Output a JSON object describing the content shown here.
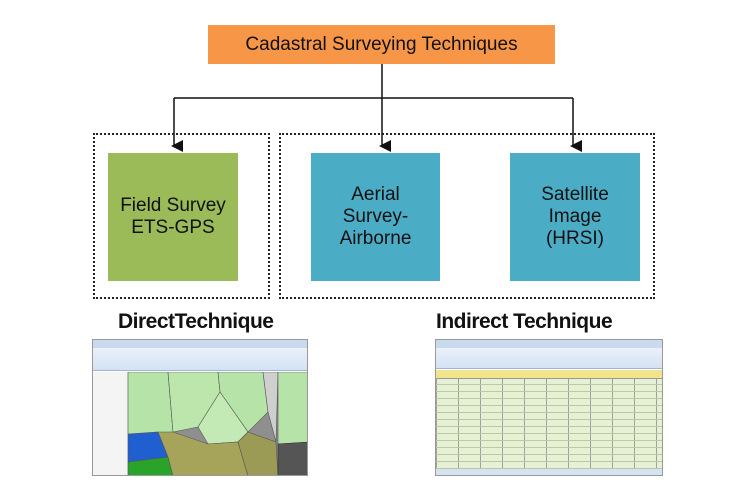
{
  "title": "Cadastral Surveying Techniques",
  "nodes": {
    "field_survey": "Field Survey\nETS-GPS",
    "aerial_survey": "Aerial\nSurvey-\nAirborne",
    "satellite_image": "Satellite\nImage\n(HRSI)"
  },
  "groups": {
    "direct_label": "DirectTechnique",
    "indirect_label": "Indirect Technique"
  },
  "colors": {
    "title": "#f79646",
    "direct": "#9bbb59",
    "indirect": "#4bacc6"
  }
}
